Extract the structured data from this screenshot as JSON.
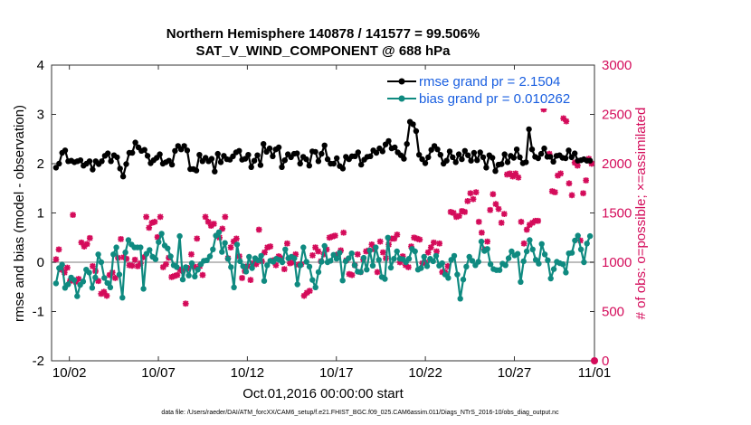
{
  "chart_data": {
    "type": "line",
    "title": "Northern Hemisphere 140878 / 141577 = 99.506%",
    "subtitle": "SAT_V_WIND_COMPONENT @ 688 hPa",
    "xlabel": "Oct.01,2016 00:00:00 start",
    "ylabel_left": "rmse and bias (model - observation)",
    "ylabel_right": "# of obs: o=possible; ×=assimilated",
    "footer": "data file: /Users/raeder/DAI/ATM_forcXX/CAM6_setup/f.e21.FHIST_BGC.f09_025.CAM6assim.011/Diags_NTrS_2016-10/obs_diag_output.nc",
    "x_range_days": [
      0.5,
      31.0
    ],
    "x_ticks": [
      {
        "day": 1.5,
        "label": "10/02"
      },
      {
        "day": 6.5,
        "label": "10/07"
      },
      {
        "day": 11.5,
        "label": "10/12"
      },
      {
        "day": 16.5,
        "label": "10/17"
      },
      {
        "day": 21.5,
        "label": "10/22"
      },
      {
        "day": 26.5,
        "label": "10/27"
      },
      {
        "day": 31.0,
        "label": "11/01"
      }
    ],
    "ylim_left": [
      -2,
      4
    ],
    "yticks_left": [
      "-2",
      "-1",
      "0",
      "1",
      "2",
      "3",
      "4"
    ],
    "ylim_right": [
      0,
      3000
    ],
    "yticks_right": [
      "0",
      "500",
      "1000",
      "1500",
      "2000",
      "2500",
      "3000"
    ],
    "legend": {
      "position": "top-right"
    },
    "colors": {
      "rmse": "#000000",
      "bias": "#0f8a80",
      "obs": "#d40b5a",
      "legend_text": "#1a5fe0",
      "zero_line": "#bdbdbd"
    },
    "series": [
      {
        "name": "rmse grand pr = 2.1504",
        "axis": "left",
        "values": [
          1.92,
          2.0,
          2.22,
          2.27,
          2.05,
          2.06,
          2.03,
          2.05,
          2.07,
          1.96,
          2.0,
          2.05,
          1.88,
          2.05,
          1.99,
          2.05,
          2.16,
          2.21,
          2.05,
          2.17,
          2.13,
          1.9,
          1.74,
          1.99,
          2.22,
          2.22,
          2.43,
          2.33,
          2.26,
          2.28,
          2.16,
          2.01,
          2.07,
          2.12,
          2.19,
          2.0,
          2.03,
          2.06,
          1.98,
          2.26,
          2.36,
          2.29,
          2.36,
          2.27,
          1.89,
          1.89,
          1.86,
          2.18,
          2.05,
          2.12,
          2.05,
          2.1,
          1.84,
          2.2,
          2.03,
          2.16,
          2.09,
          2.08,
          2.15,
          2.23,
          2.26,
          2.08,
          2.1,
          2.18,
          1.93,
          2.06,
          2.17,
          1.97,
          2.4,
          2.24,
          2.31,
          2.15,
          2.29,
          2.33,
          1.93,
          2.07,
          2.19,
          2.13,
          2.2,
          2.21,
          2.0,
          2.14,
          2.09,
          1.96,
          2.25,
          2.24,
          2.05,
          2.2,
          2.37,
          2.09,
          2.0,
          2.0,
          2.11,
          1.95,
          1.9,
          2.14,
          2.09,
          2.15,
          2.15,
          2.23,
          1.98,
          2.08,
          2.14,
          2.15,
          2.27,
          2.22,
          2.31,
          2.25,
          2.39,
          2.46,
          2.31,
          2.33,
          2.23,
          2.17,
          2.1,
          2.4,
          2.85,
          2.8,
          2.66,
          2.18,
          2.09,
          2.01,
          2.13,
          2.28,
          2.36,
          2.29,
          2.18,
          2.0,
          2.06,
          2.25,
          2.13,
          2.03,
          2.19,
          2.09,
          2.26,
          2.17,
          2.06,
          2.22,
          2.07,
          2.23,
          2.13,
          1.92,
          2.17,
          2.12,
          1.85,
          1.98,
          1.99,
          2.19,
          2.03,
          2.16,
          2.12,
          2.29,
          2.13,
          2.01,
          2.03,
          2.7,
          2.29,
          2.14,
          2.11,
          2.2,
          2.31,
          2.14,
          2.14,
          2.04,
          2.16,
          2.17,
          2.12,
          2.11,
          2.27,
          2.13,
          2.21,
          2.06,
          2.07,
          2.09,
          2.06,
          2.06
        ]
      },
      {
        "name": "bias grand pr = 0.010262",
        "axis": "left",
        "values": [
          -0.43,
          -0.12,
          -0.05,
          -0.52,
          -0.45,
          -0.31,
          -0.36,
          -0.69,
          -0.46,
          -0.39,
          -0.15,
          -0.21,
          -0.52,
          -0.31,
          0.16,
          0.0,
          -0.32,
          -0.42,
          -0.51,
          0.16,
          0.3,
          -0.25,
          -0.72,
          0.2,
          0.45,
          0.36,
          0.3,
          0.3,
          0.3,
          -0.54,
          0.17,
          0.25,
          0.11,
          0.06,
          0.41,
          0.58,
          0.34,
          0.28,
          0.12,
          -0.06,
          -0.1,
          0.53,
          -0.35,
          -0.1,
          -0.27,
          -0.02,
          -0.29,
          -0.15,
          -0.04,
          0.03,
          0.04,
          0.12,
          0.26,
          0.54,
          0.61,
          0.21,
          0.39,
          0.07,
          -0.1,
          -0.51,
          0.36,
          0.02,
          -0.08,
          -0.19,
          0.11,
          -0.12,
          0.08,
          0.04,
          0.13,
          -0.38,
          -0.06,
          0.03,
          0.01,
          0.07,
          0.05,
          0.0,
          0.26,
          0.08,
          0.11,
          0.08,
          -0.45,
          -0.06,
          0.3,
          0.01,
          -0.09,
          -0.36,
          -0.51,
          -0.2,
          0.01,
          0.33,
          0.0,
          0.03,
          0.15,
          0.07,
          0.19,
          -0.37,
          0.02,
          0.08,
          0.18,
          -0.06,
          -0.19,
          -0.2,
          0.09,
          -0.15,
          0.24,
          -0.07,
          0.3,
          0.05,
          -0.3,
          -0.34,
          0.5,
          -0.11,
          0.07,
          0.22,
          0.07,
          0.06,
          0.0,
          0.07,
          0.27,
          0.22,
          -0.15,
          -0.12,
          0.11,
          -0.08,
          0.07,
          0.02,
          0.13,
          -0.07,
          -0.02,
          -0.25,
          -0.32,
          0.05,
          0.13,
          -0.25,
          -0.74,
          -0.35,
          -0.09,
          0.11,
          0.03,
          -0.06,
          0.01,
          0.42,
          0.23,
          0.27,
          -0.04,
          -0.14,
          -0.16,
          -0.16,
          -0.03,
          -0.06,
          0.08,
          0.22,
          0.14,
          0.17,
          -0.4,
          0.02,
          0.22,
          0.45,
          0.26,
          0.05,
          -0.03,
          0.37,
          0.16,
          0.04,
          -0.33,
          -0.14,
          0.01,
          -0.02,
          -0.04,
          -0.21,
          0.18,
          0.19,
          0.44,
          0.54,
          0.26,
          0.0,
          0.38,
          0.53
        ]
      },
      {
        "name": "# of obs assimilated",
        "axis": "right",
        "values": [
          1030,
          1130,
          925,
          895,
          945,
          810,
          1480,
          800,
          830,
          1200,
          1160,
          1185,
          1245,
          960,
          910,
          810,
          680,
          700,
          660,
          870,
          895,
          840,
          1045,
          1235,
          1050,
          1035,
          970,
          965,
          1025,
          960,
          990,
          1050,
          1460,
          1350,
          1400,
          1410,
          1255,
          1460,
          950,
          980,
          1045,
          850,
          860,
          870,
          925,
          910,
          580,
          940,
          1080,
          955,
          1240,
          960,
          870,
          1460,
          1410,
          1370,
          1390,
          1270,
          1250,
          1340,
          1460,
          1040,
          1150,
          1210,
          1240,
          1060,
          840,
          910,
          960,
          820,
          990,
          980,
          1330,
          1010,
          1100,
          1150,
          1160,
          1020,
          970,
          1060,
          1040,
          930,
          1190,
          990,
          1000,
          1080,
          975,
          980,
          660,
          690,
          710,
          1070,
          1150,
          1110,
          1010,
          1080,
          1130,
          1250,
          1260,
          1270,
          1080,
          1120,
          1300,
          1020,
          880,
          870,
          970,
          1080,
          900,
          1030,
          1110,
          1120,
          1180,
          1130,
          900,
          1210,
          1100,
          1040,
          1180,
          1240,
          1240,
          1280,
          1000,
          1060,
          970,
          950,
          1160,
          1250,
          1240,
          1230,
          990,
          1000,
          1100,
          1150,
          1200,
          1110,
          1190,
          900,
          900,
          960,
          1510,
          1500,
          1460,
          1470,
          1520,
          1510,
          1620,
          1700,
          1640,
          1710,
          1410,
          1300,
          1130,
          1210,
          1530,
          1690,
          1590,
          1540,
          1400,
          1490,
          1890,
          1900,
          1870,
          1900,
          1860,
          1410,
          1190,
          1330,
          1380,
          1400,
          1420,
          1420,
          2600,
          2550,
          2680,
          2100,
          1720,
          1710,
          1880,
          1900,
          2460,
          2430,
          1800,
          1680,
          2010,
          1980,
          1220,
          1700,
          1830,
          2050,
          2000,
          0
        ]
      }
    ]
  }
}
